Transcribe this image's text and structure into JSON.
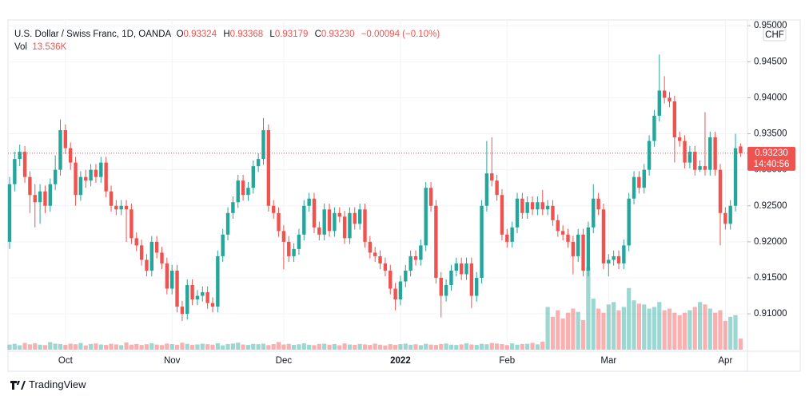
{
  "chart_data": {
    "type": "candlestick",
    "header": {
      "symbol": "U.S. Dollar / Swiss Franc, 1D, OANDA",
      "open_label": "O",
      "open": "0.93324",
      "high_label": "H",
      "high": "0.93368",
      "low_label": "L",
      "low": "0.93179",
      "close_label": "C",
      "close": "0.93230",
      "change": "−0.00094 (−0.10%)",
      "volume_label": "Vol",
      "volume": "13.536K"
    },
    "currency": "CHF",
    "last_price": "0.93230",
    "countdown": "14:40:56",
    "up_color": "#26a69a",
    "down_color": "#ef5350",
    "grid": true,
    "ylim": [
      0.9048,
      0.9508
    ],
    "yticks": [
      {
        "value": 0.95,
        "label": "0.95000"
      },
      {
        "value": 0.945,
        "label": "0.94500"
      },
      {
        "value": 0.94,
        "label": "0.94000"
      },
      {
        "value": 0.935,
        "label": "0.93500"
      },
      {
        "value": 0.93,
        "label": "0.93000"
      },
      {
        "value": 0.925,
        "label": "0.92500"
      },
      {
        "value": 0.92,
        "label": "0.92000"
      },
      {
        "value": 0.915,
        "label": "0.91500"
      },
      {
        "value": 0.91,
        "label": "0.91000"
      }
    ],
    "categories": [
      null,
      null,
      null,
      null,
      null,
      null,
      null,
      null,
      null,
      null,
      null,
      "Oct",
      null,
      null,
      null,
      null,
      null,
      null,
      null,
      null,
      null,
      null,
      null,
      null,
      null,
      null,
      null,
      null,
      null,
      null,
      null,
      null,
      "Nov",
      null,
      null,
      null,
      null,
      null,
      null,
      null,
      null,
      null,
      null,
      null,
      null,
      null,
      null,
      null,
      null,
      null,
      null,
      null,
      null,
      null,
      "Dec",
      null,
      null,
      null,
      null,
      null,
      null,
      null,
      null,
      null,
      null,
      null,
      null,
      null,
      null,
      null,
      null,
      null,
      null,
      null,
      null,
      null,
      null,
      "2022",
      null,
      null,
      null,
      null,
      null,
      null,
      null,
      null,
      null,
      null,
      null,
      null,
      null,
      null,
      null,
      null,
      null,
      null,
      null,
      null,
      "Feb",
      null,
      null,
      null,
      null,
      null,
      null,
      null,
      null,
      null,
      null,
      null,
      null,
      null,
      null,
      null,
      null,
      null,
      null,
      null,
      "Mar",
      null,
      null,
      null,
      null,
      null,
      null,
      null,
      null,
      null,
      null,
      null,
      null,
      null,
      null,
      null,
      null,
      null,
      null,
      null,
      null,
      null,
      null,
      "Apr",
      null,
      null,
      null
    ],
    "open": [
      0.92,
      0.928,
      0.9315,
      0.9325,
      0.929,
      0.9265,
      0.9255,
      0.927,
      0.925,
      0.928,
      0.93,
      0.9355,
      0.933,
      0.931,
      0.9265,
      0.929,
      0.9285,
      0.93,
      0.929,
      0.931,
      0.927,
      0.925,
      0.9245,
      0.925,
      0.9245,
      0.9205,
      0.9195,
      0.9175,
      0.916,
      0.92,
      0.9185,
      0.917,
      0.9135,
      0.916,
      0.911,
      0.91,
      0.914,
      0.912,
      0.9125,
      0.913,
      0.9115,
      0.911,
      0.918,
      0.921,
      0.924,
      0.9255,
      0.9285,
      0.9265,
      0.9275,
      0.9305,
      0.9315,
      0.9355,
      0.925,
      0.924,
      0.9215,
      0.92,
      0.918,
      0.919,
      0.921,
      0.925,
      0.926,
      0.922,
      0.921,
      0.9245,
      0.9215,
      0.924,
      0.9235,
      0.9205,
      0.924,
      0.9225,
      0.9245,
      0.92,
      0.9185,
      0.918,
      0.917,
      0.916,
      0.9135,
      0.912,
      0.9145,
      0.916,
      0.918,
      0.9175,
      0.9195,
      0.9275,
      0.925,
      0.915,
      0.9125,
      0.914,
      0.916,
      0.917,
      0.9155,
      0.917,
      0.9125,
      0.915,
      0.925,
      0.9295,
      0.9285,
      0.9265,
      0.921,
      0.92,
      0.922,
      0.926,
      0.924,
      0.9255,
      0.9245,
      0.9255,
      0.9245,
      0.925,
      0.923,
      0.9215,
      0.921,
      0.92,
      0.918,
      0.921,
      0.916,
      0.922,
      0.926,
      0.9245,
      0.917,
      0.9175,
      0.918,
      0.917,
      0.9195,
      0.926,
      0.929,
      0.9275,
      0.93,
      0.934,
      0.9375,
      0.941,
      0.94,
      0.9395,
      0.9345,
      0.934,
      0.931,
      0.9325,
      0.93,
      0.9305,
      0.93,
      0.9345,
      0.93,
      0.924,
      0.9225,
      0.925,
      0.93324
    ],
    "high": [
      0.929,
      0.9325,
      0.9335,
      0.9333,
      0.9298,
      0.928,
      0.928,
      0.9278,
      0.9288,
      0.932,
      0.937,
      0.9363,
      0.9338,
      0.9318,
      0.9298,
      0.93,
      0.9308,
      0.9308,
      0.9318,
      0.9318,
      0.9278,
      0.9258,
      0.9258,
      0.9258,
      0.9253,
      0.9213,
      0.9203,
      0.9183,
      0.9208,
      0.9208,
      0.9193,
      0.9178,
      0.9168,
      0.9168,
      0.9118,
      0.9148,
      0.9148,
      0.9133,
      0.9138,
      0.9138,
      0.9123,
      0.9188,
      0.9218,
      0.9248,
      0.9263,
      0.9293,
      0.9293,
      0.9283,
      0.9313,
      0.9323,
      0.9372,
      0.9363,
      0.9258,
      0.9248,
      0.9223,
      0.9208,
      0.9198,
      0.9218,
      0.9258,
      0.9268,
      0.9268,
      0.9228,
      0.9253,
      0.9253,
      0.9248,
      0.9248,
      0.9243,
      0.9248,
      0.9248,
      0.9253,
      0.9253,
      0.9208,
      0.9193,
      0.9188,
      0.9178,
      0.9168,
      0.9143,
      0.9153,
      0.9168,
      0.9188,
      0.9188,
      0.9203,
      0.9283,
      0.9283,
      0.9258,
      0.9158,
      0.9148,
      0.9168,
      0.9178,
      0.9178,
      0.9178,
      0.9178,
      0.9158,
      0.9258,
      0.934,
      0.9345,
      0.9293,
      0.9273,
      0.9218,
      0.9228,
      0.9268,
      0.9268,
      0.9263,
      0.9263,
      0.9263,
      0.9272,
      0.9258,
      0.9258,
      0.9238,
      0.9223,
      0.9218,
      0.9208,
      0.9218,
      0.9218,
      0.9228,
      0.928,
      0.9268,
      0.9253,
      0.9183,
      0.9188,
      0.9188,
      0.9203,
      0.9268,
      0.9298,
      0.9298,
      0.9308,
      0.9348,
      0.9383,
      0.946,
      0.943,
      0.9408,
      0.9403,
      0.9353,
      0.9348,
      0.9333,
      0.9333,
      0.9313,
      0.938,
      0.9353,
      0.9353,
      0.9308,
      0.9248,
      0.9258,
      0.935,
      0.93368
    ],
    "low": [
      0.919,
      0.927,
      0.9305,
      0.9282,
      0.924,
      0.922,
      0.9225,
      0.924,
      0.9242,
      0.9272,
      0.9292,
      0.9322,
      0.93,
      0.925,
      0.9257,
      0.9275,
      0.9277,
      0.9282,
      0.9282,
      0.9262,
      0.9242,
      0.9237,
      0.9237,
      0.92,
      0.9197,
      0.9187,
      0.9167,
      0.9152,
      0.9152,
      0.9177,
      0.9162,
      0.9127,
      0.9127,
      0.9102,
      0.909,
      0.9092,
      0.9112,
      0.9112,
      0.9117,
      0.9107,
      0.9102,
      0.9102,
      0.9172,
      0.9202,
      0.9232,
      0.9247,
      0.9257,
      0.9257,
      0.9267,
      0.9297,
      0.9307,
      0.9242,
      0.9232,
      0.9207,
      0.9162,
      0.9172,
      0.9172,
      0.9182,
      0.9202,
      0.9242,
      0.9212,
      0.9202,
      0.9202,
      0.9207,
      0.9207,
      0.9227,
      0.9197,
      0.9197,
      0.9217,
      0.9217,
      0.9192,
      0.9177,
      0.9172,
      0.9162,
      0.9152,
      0.9127,
      0.9105,
      0.9112,
      0.9137,
      0.9152,
      0.9167,
      0.9167,
      0.9187,
      0.9242,
      0.9142,
      0.9095,
      0.9117,
      0.9132,
      0.9152,
      0.9147,
      0.9147,
      0.9108,
      0.9117,
      0.9142,
      0.9242,
      0.9277,
      0.9257,
      0.9202,
      0.9192,
      0.9192,
      0.9212,
      0.9232,
      0.9232,
      0.9237,
      0.9237,
      0.9237,
      0.9237,
      0.9222,
      0.9207,
      0.9202,
      0.9192,
      0.9155,
      0.9172,
      0.9152,
      0.9152,
      0.9212,
      0.9237,
      0.9162,
      0.9152,
      0.9167,
      0.9162,
      0.9162,
      0.9187,
      0.9252,
      0.9267,
      0.9267,
      0.9292,
      0.9332,
      0.9367,
      0.9392,
      0.9387,
      0.931,
      0.9332,
      0.9302,
      0.9302,
      0.9292,
      0.9297,
      0.9292,
      0.9292,
      0.9292,
      0.9195,
      0.9217,
      0.9217,
      0.9242,
      0.93179
    ],
    "close": [
      0.928,
      0.9315,
      0.9325,
      0.929,
      0.9265,
      0.9255,
      0.927,
      0.925,
      0.928,
      0.93,
      0.9355,
      0.933,
      0.931,
      0.9265,
      0.929,
      0.9285,
      0.93,
      0.929,
      0.931,
      0.927,
      0.925,
      0.9245,
      0.925,
      0.9245,
      0.9205,
      0.9195,
      0.9175,
      0.916,
      0.92,
      0.9185,
      0.917,
      0.9135,
      0.916,
      0.911,
      0.91,
      0.914,
      0.912,
      0.9125,
      0.913,
      0.9115,
      0.911,
      0.918,
      0.921,
      0.924,
      0.9255,
      0.9285,
      0.9265,
      0.9275,
      0.9305,
      0.9315,
      0.9355,
      0.925,
      0.924,
      0.9215,
      0.92,
      0.918,
      0.919,
      0.921,
      0.925,
      0.926,
      0.922,
      0.921,
      0.9245,
      0.9215,
      0.924,
      0.9235,
      0.9205,
      0.924,
      0.9225,
      0.9245,
      0.92,
      0.9185,
      0.918,
      0.917,
      0.916,
      0.9135,
      0.912,
      0.9145,
      0.916,
      0.918,
      0.9175,
      0.9195,
      0.9275,
      0.925,
      0.915,
      0.9125,
      0.914,
      0.916,
      0.917,
      0.9155,
      0.917,
      0.9125,
      0.915,
      0.925,
      0.9295,
      0.9285,
      0.9265,
      0.921,
      0.92,
      0.922,
      0.926,
      0.924,
      0.9255,
      0.9245,
      0.9255,
      0.9245,
      0.925,
      0.923,
      0.9215,
      0.921,
      0.92,
      0.918,
      0.921,
      0.916,
      0.922,
      0.926,
      0.9245,
      0.917,
      0.9175,
      0.918,
      0.917,
      0.9195,
      0.926,
      0.929,
      0.9275,
      0.93,
      0.934,
      0.9375,
      0.941,
      0.94,
      0.9395,
      0.9345,
      0.934,
      0.931,
      0.9325,
      0.93,
      0.9305,
      0.93,
      0.9345,
      0.93,
      0.924,
      0.9225,
      0.925,
      0.933,
      0.9323
    ],
    "volume": [
      6200,
      7100,
      5400,
      8300,
      6500,
      7700,
      6100,
      5600,
      9200,
      7400,
      6800,
      5900,
      7300,
      6600,
      8100,
      5200,
      6900,
      7600,
      6300,
      5800,
      7200,
      6400,
      5500,
      8800,
      6100,
      7000,
      5700,
      6600,
      7900,
      6200,
      5600,
      7400,
      6800,
      6000,
      8500,
      7100,
      5900,
      6400,
      7300,
      6700,
      6100,
      7800,
      5300,
      6900,
      7500,
      8600,
      6200,
      5800,
      7000,
      6600,
      7300,
      5600,
      6800,
      9400,
      6300,
      7100,
      5900,
      6500,
      7700,
      6000,
      5500,
      6900,
      7200,
      6100,
      6800,
      5400,
      7600,
      6300,
      5900,
      7000,
      6400,
      5800,
      7300,
      6100,
      5200,
      6700,
      5900,
      6800,
      7400,
      6000,
      6600,
      5500,
      7100,
      6200,
      5800,
      6900,
      7500,
      6100,
      5700,
      6400,
      7800,
      6300,
      5900,
      7100,
      6600,
      8200,
      7400,
      6800,
      5600,
      7700,
      6100,
      6900,
      7200,
      8300,
      6500,
      9800,
      52000,
      40000,
      48000,
      38000,
      45000,
      50000,
      46000,
      36000,
      100000,
      62000,
      50000,
      45000,
      55000,
      58000,
      48000,
      52000,
      75000,
      60000,
      56000,
      55000,
      50000,
      52000,
      58000,
      48000,
      50000,
      45000,
      42000,
      45000,
      48000,
      52000,
      58000,
      55000,
      50000,
      45000,
      48000,
      35000,
      40000,
      42000,
      13536
    ]
  },
  "footer": {
    "brand": "TradingView"
  }
}
